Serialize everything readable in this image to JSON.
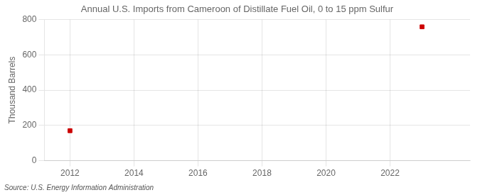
{
  "chart_data": {
    "type": "scatter",
    "title": "Annual U.S. Imports from Cameroon of Distillate Fuel Oil, 0 to 15 ppm Sulfur",
    "ylabel": "Thousand Barrels",
    "annotations": [
      "Source: U.S. Energy Information Administration"
    ],
    "x": [
      2012,
      2023
    ],
    "values": [
      170,
      759
    ],
    "color": "#cc0000",
    "marker": "square",
    "xlim": [
      2011.2,
      2024.5
    ],
    "xticks": [
      2012,
      2014,
      2016,
      2018,
      2020,
      2022
    ],
    "ylim": [
      0,
      800
    ],
    "yticks": [
      0,
      200,
      400,
      600,
      800
    ],
    "grid": true
  }
}
